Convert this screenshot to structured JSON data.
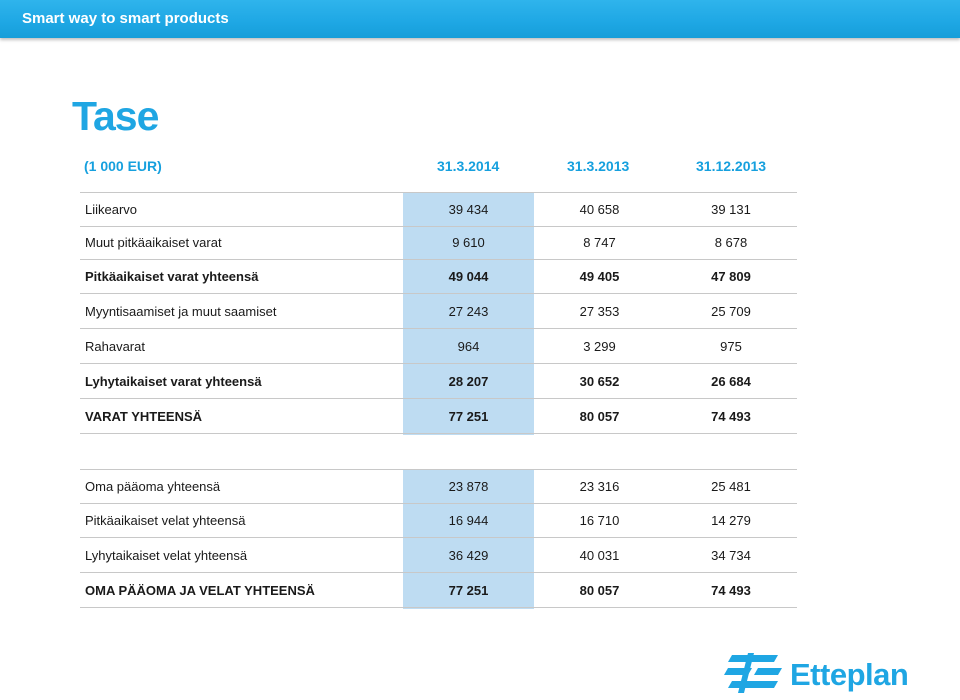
{
  "banner": {
    "text": "Smart way to smart products"
  },
  "title": "Tase",
  "header": {
    "unit": "(1 000 EUR)",
    "col1": "31.3.2014",
    "col2": "31.3.2013",
    "col3": "31.12.2013"
  },
  "assets": [
    {
      "label": "Liikearvo",
      "v1": "39 434",
      "v2": "40 658",
      "v3": "39 131"
    },
    {
      "label": "Muut pitkäaikaiset varat",
      "v1": "9 610",
      "v2": "8 747",
      "v3": "8 678"
    },
    {
      "label": "Pitkäaikaiset varat yhteensä",
      "v1": "49 044",
      "v2": "49 405",
      "v3": "47 809"
    },
    {
      "label": "Myyntisaamiset ja muut saamiset",
      "v1": "27 243",
      "v2": "27 353",
      "v3": "25 709"
    },
    {
      "label": "Rahavarat",
      "v1": "964",
      "v2": "3 299",
      "v3": "975"
    },
    {
      "label": "Lyhytaikaiset varat yhteensä",
      "v1": "28 207",
      "v2": "30 652",
      "v3": "26 684"
    },
    {
      "label": "VARAT YHTEENSÄ",
      "v1": "77 251",
      "v2": "80 057",
      "v3": "74 493"
    }
  ],
  "liabilities": [
    {
      "label": "Oma pääoma yhteensä",
      "v1": "23 878",
      "v2": "23 316",
      "v3": "25 481"
    },
    {
      "label": "Pitkäaikaiset velat yhteensä",
      "v1": "16 944",
      "v2": "16 710",
      "v3": "14 279"
    },
    {
      "label": "Lyhytaikaiset velat yhteensä",
      "v1": "36 429",
      "v2": "40 031",
      "v3": "34 734"
    },
    {
      "label": "OMA PÄÄOMA JA VELAT YHTEENSÄ",
      "v1": "77 251",
      "v2": "80 057",
      "v3": "74 493"
    }
  ],
  "logo": {
    "text": "Etteplan",
    "icon": "etteplan-logo-icon"
  },
  "colors": {
    "accent": "#1fa6e3",
    "highlight_column": "#bedcf2"
  }
}
